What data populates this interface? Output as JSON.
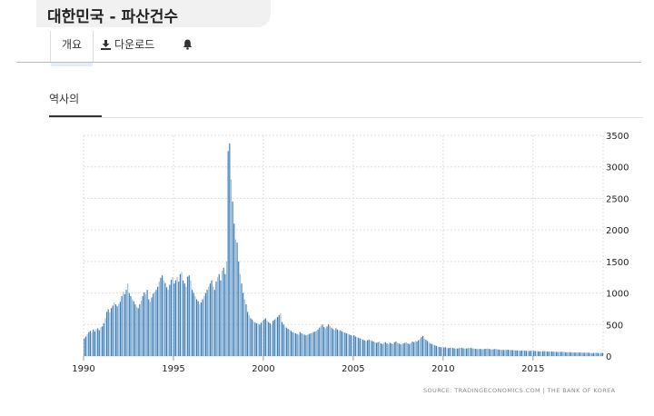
{
  "page": {
    "title": "대한민국 - 파산건수"
  },
  "tabs": {
    "overview": "개요",
    "download": "다운로드",
    "alert_icon": "bell-icon",
    "download_icon": "download-icon"
  },
  "section": {
    "history_tab": "역사의"
  },
  "source": "SOURCE: TRADINGECONOMICS.COM  |  THE BANK OF KOREA",
  "colors": {
    "bar": "#3d7db5",
    "bar_light": "#9dbfdc",
    "grid": "#dddddd"
  },
  "chart_data": {
    "type": "bar",
    "title": "",
    "xlabel": "",
    "ylabel": "",
    "ylim": [
      0,
      3500
    ],
    "xlim": [
      1990,
      2018.9
    ],
    "y_ticks": [
      "0",
      "500",
      "1000",
      "1500",
      "2000",
      "2500",
      "3000",
      "3500"
    ],
    "x_ticks": [
      "1990",
      "1995",
      "2000",
      "2005",
      "2010",
      "2015"
    ],
    "grid": true,
    "y_axis_position": "right",
    "legend": "none",
    "frequency": "monthly",
    "series": [
      {
        "years": [
          {
            "year": 1990,
            "values": [
              280,
              310,
              350,
              380,
              400,
              370,
              420,
              390,
              430,
              440,
              410,
              460
            ]
          },
          {
            "year": 1991,
            "values": [
              470,
              520,
              600,
              700,
              740,
              690,
              760,
              800,
              850,
              820,
              790,
              830
            ]
          },
          {
            "year": 1992,
            "values": [
              860,
              950,
              1020,
              980,
              1050,
              1150,
              1000,
              950,
              900,
              870,
              820,
              780
            ]
          },
          {
            "year": 1993,
            "values": [
              760,
              820,
              880,
              950,
              1010,
              980,
              1050,
              900,
              860,
              930,
              990,
              1020
            ]
          },
          {
            "year": 1994,
            "values": [
              1050,
              1100,
              1180,
              1240,
              1280,
              1200,
              1160,
              1090,
              1050,
              1130,
              1210,
              1250
            ]
          },
          {
            "year": 1995,
            "values": [
              1150,
              1200,
              1250,
              1180,
              1300,
              1330,
              1200,
              1150,
              1100,
              1260,
              1280,
              1200
            ]
          },
          {
            "year": 1996,
            "values": [
              1050,
              1000,
              950,
              900,
              870,
              820,
              850,
              900,
              950,
              1000,
              1050,
              1100
            ]
          },
          {
            "year": 1997,
            "values": [
              1150,
              1200,
              1100,
              1050,
              1180,
              1250,
              1300,
              1200,
              1350,
              1400,
              1300,
              1500
            ]
          },
          {
            "year": 1998,
            "values": [
              3250,
              3370,
              2800,
              2450,
              2100,
              1850,
              1800,
              1500,
              1300,
              1150,
              1000,
              900
            ]
          },
          {
            "year": 1999,
            "values": [
              820,
              700,
              650,
              600,
              580,
              550,
              530,
              520,
              510,
              500,
              530,
              560
            ]
          },
          {
            "year": 2000,
            "values": [
              580,
              600,
              560,
              540,
              520,
              500,
              560,
              580,
              600,
              620,
              650,
              680
            ]
          },
          {
            "year": 2001,
            "values": [
              540,
              500,
              470,
              450,
              430,
              420,
              400,
              380,
              370,
              360,
              350,
              340
            ]
          },
          {
            "year": 2002,
            "values": [
              380,
              360,
              350,
              340,
              330,
              340,
              350,
              360,
              370,
              380,
              390,
              400
            ]
          },
          {
            "year": 2003,
            "values": [
              420,
              450,
              480,
              500,
              460,
              440,
              470,
              500,
              480,
              450,
              430,
              410
            ]
          },
          {
            "year": 2004,
            "values": [
              440,
              420,
              400,
              410,
              390,
              380,
              370,
              360,
              350,
              340,
              330,
              320
            ]
          },
          {
            "year": 2005,
            "values": [
              330,
              310,
              300,
              290,
              280,
              270,
              260,
              250,
              240,
              250,
              260,
              250
            ]
          },
          {
            "year": 2006,
            "values": [
              240,
              230,
              220,
              210,
              220,
              230,
              200,
              190,
              210,
              220,
              200,
              190
            ]
          },
          {
            "year": 2007,
            "values": [
              210,
              200,
              190,
              220,
              230,
              210,
              200,
              190,
              180,
              200,
              210,
              220
            ]
          },
          {
            "year": 2008,
            "values": [
              200,
              190,
              210,
              230,
              220,
              240,
              230,
              250,
              270,
              300,
              320,
              280
            ]
          },
          {
            "year": 2009,
            "values": [
              260,
              240,
              220,
              200,
              190,
              180,
              170,
              160,
              150,
              145,
              140,
              140
            ]
          },
          {
            "year": 2010,
            "values": [
              135,
              140,
              130,
              125,
              130,
              135,
              128,
              122,
              118,
              120,
              125,
              130
            ]
          },
          {
            "year": 2011,
            "values": [
              128,
              122,
              118,
              120,
              125,
              130,
              128,
              122,
              118,
              115,
              112,
              110
            ]
          },
          {
            "year": 2012,
            "values": [
              115,
              110,
              108,
              112,
              116,
              120,
              114,
              108,
              104,
              108,
              112,
              110
            ]
          },
          {
            "year": 2013,
            "values": [
              105,
              102,
              100,
              98,
              96,
              95,
              98,
              100,
              97,
              95,
              93,
              92
            ]
          },
          {
            "year": 2014,
            "values": [
              90,
              88,
              86,
              84,
              86,
              88,
              85,
              82,
              80,
              82,
              84,
              85
            ]
          },
          {
            "year": 2015,
            "values": [
              82,
              80,
              78,
              76,
              75,
              74,
              76,
              78,
              75,
              72,
              70,
              72
            ]
          },
          {
            "year": 2016,
            "values": [
              72,
              70,
              68,
              66,
              65,
              64,
              66,
              68,
              65,
              62,
              60,
              62
            ]
          },
          {
            "year": 2017,
            "values": [
              62,
              60,
              58,
              57,
              56,
              55,
              56,
              58,
              55,
              53,
              52,
              54
            ]
          },
          {
            "year": 2018,
            "values": [
              54,
              52,
              50,
              48,
              50,
              52,
              50,
              48,
              46,
              48,
              50
            ]
          }
        ]
      }
    ]
  }
}
